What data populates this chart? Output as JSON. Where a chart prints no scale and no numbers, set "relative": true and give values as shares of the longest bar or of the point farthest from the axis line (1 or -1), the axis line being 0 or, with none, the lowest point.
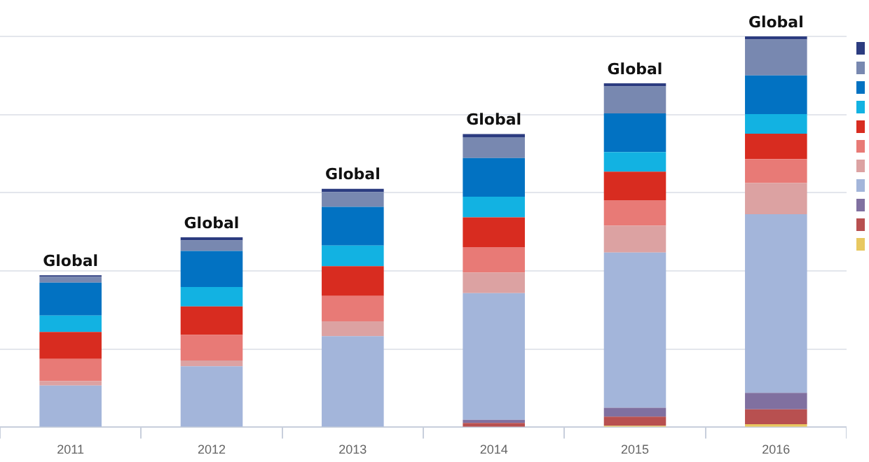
{
  "chart_data": {
    "type": "bar",
    "stacked": true,
    "relative": true,
    "grid": "y",
    "categories": [
      "2011",
      "2012",
      "2013",
      "2014",
      "2015",
      "2016"
    ],
    "series": [
      {
        "color": "#e8c860",
        "values": [
          0,
          0,
          0,
          0,
          0.004,
          0.008
        ]
      },
      {
        "color": "#b85050",
        "values": [
          0,
          0,
          0,
          0.011,
          0.023,
          0.038
        ]
      },
      {
        "color": "#8070a0",
        "values": [
          0,
          0,
          0,
          0.008,
          0.023,
          0.042
        ]
      },
      {
        "color": "#a3b5da",
        "values": [
          0.107,
          0.156,
          0.233,
          0.324,
          0.397,
          0.457
        ]
      },
      {
        "color": "#dca2a2",
        "values": [
          0.011,
          0.015,
          0.038,
          0.053,
          0.069,
          0.08
        ]
      },
      {
        "color": "#e87a76",
        "values": [
          0.057,
          0.065,
          0.065,
          0.065,
          0.065,
          0.061
        ]
      },
      {
        "color": "#d82c20",
        "values": [
          0.069,
          0.073,
          0.076,
          0.076,
          0.073,
          0.065
        ]
      },
      {
        "color": "#12b2e2",
        "values": [
          0.042,
          0.05,
          0.053,
          0.053,
          0.05,
          0.05
        ]
      },
      {
        "color": "#0272c2",
        "values": [
          0.084,
          0.092,
          0.099,
          0.099,
          0.099,
          0.099
        ]
      },
      {
        "color": "#7888b0",
        "values": [
          0.015,
          0.027,
          0.038,
          0.053,
          0.069,
          0.092
        ]
      },
      {
        "color": "#2c3c80",
        "values": [
          0.004,
          0.008,
          0.008,
          0.008,
          0.008,
          0.008
        ]
      }
    ],
    "annotations": [
      {
        "text": "Global",
        "x": "2011",
        "y": 0.389
      },
      {
        "text": "Global",
        "x": "2012",
        "y": 0.486
      },
      {
        "text": "Global",
        "x": "2013",
        "y": 0.61
      },
      {
        "text": "Global",
        "x": "2014",
        "y": 0.75
      },
      {
        "text": "Global",
        "x": "2015",
        "y": 0.88
      },
      {
        "text": "Global",
        "x": "2016",
        "y": 1.0
      }
    ]
  }
}
